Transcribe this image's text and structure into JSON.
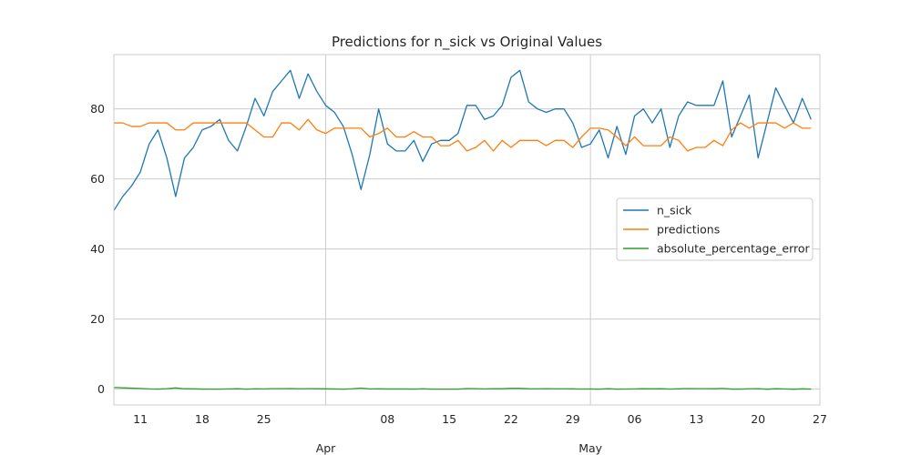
{
  "chart_data": {
    "type": "line",
    "title": "Predictions for n_sick vs Original Values",
    "xlabel": "",
    "ylabel": "",
    "x_range": [
      "2021-03-08",
      "2021-05-27"
    ],
    "ylim": [
      -4.5,
      95.5
    ],
    "y_ticks": [
      0,
      20,
      40,
      60,
      80
    ],
    "x_ticks": [
      {
        "date": "2021-03-11",
        "label": "11"
      },
      {
        "date": "2021-03-18",
        "label": "18"
      },
      {
        "date": "2021-03-25",
        "label": "25"
      },
      {
        "date": "2021-04-08",
        "label": "08"
      },
      {
        "date": "2021-04-15",
        "label": "15"
      },
      {
        "date": "2021-04-22",
        "label": "22"
      },
      {
        "date": "2021-04-29",
        "label": "29"
      },
      {
        "date": "2021-05-06",
        "label": "06"
      },
      {
        "date": "2021-05-13",
        "label": "13"
      },
      {
        "date": "2021-05-20",
        "label": "20"
      },
      {
        "date": "2021-05-27",
        "label": "27"
      }
    ],
    "month_ticks": [
      {
        "date": "2021-04-01",
        "label": "Apr"
      },
      {
        "date": "2021-05-01",
        "label": "May"
      }
    ],
    "grid": true,
    "legend": "center-right",
    "colors": {
      "n_sick": "#1f77b4",
      "predictions": "#ff7f0e",
      "absolute_percentage_error": "#2ca02c",
      "grid": "#cccccc",
      "axes": "#cccccc"
    },
    "x_start": "2021-03-08",
    "x_step_days": 1,
    "series": [
      {
        "name": "n_sick",
        "values": [
          51,
          55,
          58,
          62,
          70,
          74,
          66,
          55,
          66,
          69,
          74,
          75,
          77,
          71,
          68,
          75,
          83,
          78,
          85,
          88,
          91,
          83,
          90,
          85,
          81,
          79,
          75,
          67,
          57,
          67,
          80,
          70,
          68,
          68,
          71,
          65,
          70,
          71,
          71,
          73,
          81,
          81,
          77,
          78,
          81,
          89,
          91,
          82,
          80,
          79,
          80,
          80,
          76,
          69,
          70,
          74,
          66,
          75,
          67,
          78,
          80,
          76,
          80,
          69,
          78,
          82,
          81,
          81,
          81,
          88,
          72,
          78,
          84,
          66,
          76,
          86,
          81,
          76,
          83,
          77
        ]
      },
      {
        "name": "predictions",
        "values": [
          76,
          76,
          75,
          75,
          76,
          76,
          76,
          74,
          74,
          76,
          76,
          76,
          76,
          76,
          76,
          76,
          74,
          72,
          72,
          76,
          76,
          74,
          77,
          74,
          73,
          74.5,
          74.5,
          74.5,
          74.5,
          72,
          73,
          74.5,
          72,
          72,
          73.5,
          72,
          72,
          69.5,
          69.5,
          71,
          68,
          69,
          71,
          68,
          71,
          69,
          71,
          71,
          71,
          69.5,
          71,
          71,
          69,
          72,
          74.5,
          74.5,
          74,
          72,
          69.5,
          72,
          69.5,
          69.5,
          69.5,
          72,
          71,
          68,
          69,
          69,
          71,
          69.5,
          74,
          76,
          74.5,
          76,
          76,
          76,
          74.5,
          76,
          74.5,
          74.5
        ]
      },
      {
        "name": "absolute_percentage_error",
        "values": [
          0.49,
          0.38,
          0.29,
          0.21,
          0.08,
          0.03,
          0.15,
          0.35,
          0.12,
          0.1,
          0.03,
          0.01,
          0.01,
          0.07,
          0.12,
          0.01,
          0.11,
          0.08,
          0.15,
          0.14,
          0.16,
          0.11,
          0.14,
          0.13,
          0.1,
          0.06,
          0.01,
          0.11,
          0.31,
          0.07,
          0.09,
          0.06,
          0.06,
          0.06,
          0.03,
          0.11,
          0.03,
          0.02,
          0.02,
          0.03,
          0.16,
          0.15,
          0.08,
          0.13,
          0.12,
          0.22,
          0.22,
          0.13,
          0.11,
          0.12,
          0.11,
          0.11,
          0.09,
          0.04,
          0.06,
          0.01,
          0.12,
          0.01,
          0.04,
          0.08,
          0.13,
          0.09,
          0.13,
          0.04,
          0.09,
          0.17,
          0.15,
          0.15,
          0.12,
          0.21,
          0.03,
          0.03,
          0.11,
          0.15,
          0,
          0.12,
          0.08,
          0,
          0.1,
          0.03
        ]
      }
    ]
  }
}
